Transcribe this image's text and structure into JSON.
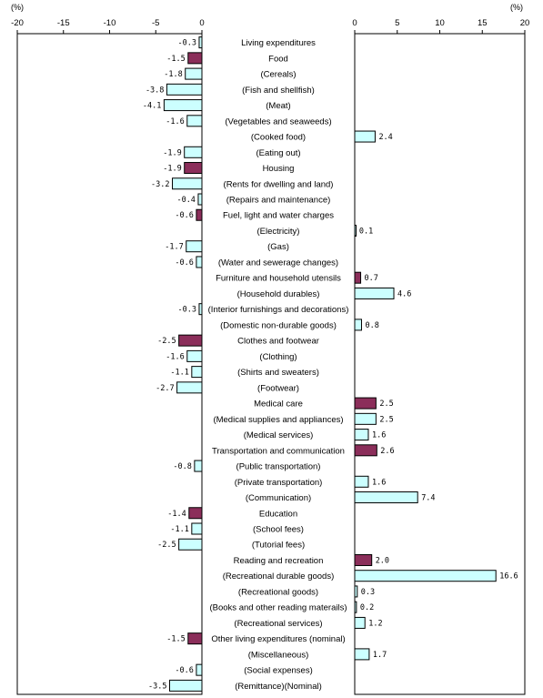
{
  "chart_data": {
    "type": "bar",
    "orientation": "horizontal",
    "unit_label": "(%)",
    "left_panel": {
      "xlim": [
        -20,
        0
      ],
      "ticks": [
        -20,
        -15,
        -10,
        -5,
        0
      ],
      "tick_labels": [
        "-20",
        "-15",
        "-10",
        "-5",
        "0"
      ],
      "value_labels_for": "negative"
    },
    "right_panel": {
      "xlim": [
        0,
        20
      ],
      "ticks": [
        0,
        5,
        10,
        15,
        20
      ],
      "tick_labels": [
        "0",
        "5",
        "10",
        "15",
        "20"
      ],
      "value_labels_for": "positive"
    },
    "colors": {
      "major": "#8b2e5a",
      "sub": "#ccffff",
      "outline": "#000000"
    },
    "categories": [
      {
        "label": "Living expenditures",
        "value": -0.3,
        "value_label": "-0.3",
        "level": "major",
        "dark": false
      },
      {
        "label": "Food",
        "value": -1.5,
        "value_label": "-1.5",
        "level": "major",
        "dark": true
      },
      {
        "label": "(Cereals)",
        "value": -1.8,
        "value_label": "-1.8",
        "level": "sub",
        "dark": false
      },
      {
        "label": "(Fish and shellfish)",
        "value": -3.8,
        "value_label": "-3.8",
        "level": "sub",
        "dark": false
      },
      {
        "label": "(Meat)",
        "value": -4.1,
        "value_label": "-4.1",
        "level": "sub",
        "dark": false
      },
      {
        "label": "(Vegetables and seaweeds)",
        "value": -1.6,
        "value_label": "-1.6",
        "level": "sub",
        "dark": false
      },
      {
        "label": "(Cooked food)",
        "value": 2.4,
        "value_label": "2.4",
        "level": "sub",
        "dark": false
      },
      {
        "label": "(Eating out)",
        "value": -1.9,
        "value_label": "-1.9",
        "level": "sub",
        "dark": false
      },
      {
        "label": "Housing",
        "value": -1.9,
        "value_label": "-1.9",
        "level": "major",
        "dark": true
      },
      {
        "label": "(Rents for dwelling and land)",
        "value": -3.2,
        "value_label": "-3.2",
        "level": "sub",
        "dark": false
      },
      {
        "label": "(Repairs and maintenance)",
        "value": -0.4,
        "value_label": "-0.4",
        "level": "sub",
        "dark": false
      },
      {
        "label": "Fuel, light and water charges",
        "value": -0.6,
        "value_label": "-0.6",
        "level": "major",
        "dark": true
      },
      {
        "label": "(Electricity)",
        "value": 0.1,
        "value_label": "0.1",
        "level": "sub",
        "dark": false
      },
      {
        "label": "(Gas)",
        "value": -1.7,
        "value_label": "-1.7",
        "level": "sub",
        "dark": false
      },
      {
        "label": "(Water and sewerage changes)",
        "value": -0.6,
        "value_label": "-0.6",
        "level": "sub",
        "dark": false
      },
      {
        "label": "Furniture and household utensils",
        "value": 0.7,
        "value_label": "0.7",
        "level": "major",
        "dark": true
      },
      {
        "label": "(Household durables)",
        "value": 4.6,
        "value_label": "4.6",
        "level": "sub",
        "dark": false
      },
      {
        "label": "(Interior furnishings and decorations)",
        "value": -0.3,
        "value_label": "-0.3",
        "level": "sub",
        "dark": false
      },
      {
        "label": "(Domestic non-durable goods)",
        "value": 0.8,
        "value_label": "0.8",
        "level": "sub",
        "dark": false
      },
      {
        "label": "Clothes and footwear",
        "value": -2.5,
        "value_label": "-2.5",
        "level": "major",
        "dark": true
      },
      {
        "label": "(Clothing)",
        "value": -1.6,
        "value_label": "-1.6",
        "level": "sub",
        "dark": false
      },
      {
        "label": "(Shirts and sweaters)",
        "value": -1.1,
        "value_label": "-1.1",
        "level": "sub",
        "dark": false
      },
      {
        "label": "(Footwear)",
        "value": -2.7,
        "value_label": "-2.7",
        "level": "sub",
        "dark": false
      },
      {
        "label": "Medical care",
        "value": 2.5,
        "value_label": "2.5",
        "level": "major",
        "dark": true
      },
      {
        "label": "(Medical supplies and appliances)",
        "value": 2.5,
        "value_label": "2.5",
        "level": "sub",
        "dark": false
      },
      {
        "label": "(Medical services)",
        "value": 1.6,
        "value_label": "1.6",
        "level": "sub",
        "dark": false
      },
      {
        "label": "Transportation and communication",
        "value": 2.6,
        "value_label": "2.6",
        "level": "major",
        "dark": true
      },
      {
        "label": "(Public transportation)",
        "value": -0.8,
        "value_label": "-0.8",
        "level": "sub",
        "dark": false
      },
      {
        "label": "(Private transportation)",
        "value": 1.6,
        "value_label": "1.6",
        "level": "sub",
        "dark": false
      },
      {
        "label": "(Communication)",
        "value": 7.4,
        "value_label": "7.4",
        "level": "sub",
        "dark": false
      },
      {
        "label": "Education",
        "value": -1.4,
        "value_label": "-1.4",
        "level": "major",
        "dark": true
      },
      {
        "label": "(School fees)",
        "value": -1.1,
        "value_label": "-1.1",
        "level": "sub",
        "dark": false
      },
      {
        "label": "(Tutorial fees)",
        "value": -2.5,
        "value_label": "-2.5",
        "level": "sub",
        "dark": false
      },
      {
        "label": "Reading and recreation",
        "value": 2.0,
        "value_label": "2.0",
        "level": "major",
        "dark": true
      },
      {
        "label": "(Recreational durable goods)",
        "value": 16.6,
        "value_label": "16.6",
        "level": "sub",
        "dark": false
      },
      {
        "label": "(Recreational goods)",
        "value": 0.3,
        "value_label": "0.3",
        "level": "sub",
        "dark": false
      },
      {
        "label": "(Books and other reading materails)",
        "value": 0.2,
        "value_label": "0.2",
        "level": "sub",
        "dark": false
      },
      {
        "label": "(Recreational services)",
        "value": 1.2,
        "value_label": "1.2",
        "level": "sub",
        "dark": false
      },
      {
        "label": "Other living expenditures (nominal)",
        "value": -1.5,
        "value_label": "-1.5",
        "level": "major",
        "dark": true
      },
      {
        "label": "(Miscellaneous)",
        "value": 1.7,
        "value_label": "1.7",
        "level": "sub",
        "dark": false
      },
      {
        "label": "(Social expenses)",
        "value": -0.6,
        "value_label": "-0.6",
        "level": "sub",
        "dark": false
      },
      {
        "label": "(Remittance)(Nominal)",
        "value": -3.5,
        "value_label": "-3.5",
        "level": "sub",
        "dark": false
      }
    ]
  }
}
